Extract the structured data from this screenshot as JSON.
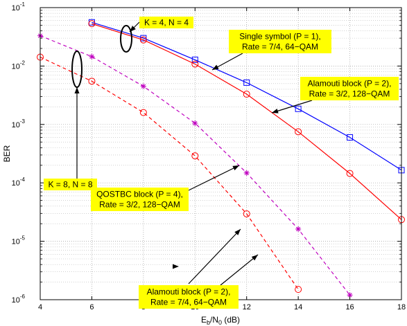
{
  "chart_data": {
    "type": "line",
    "y_scale": "log",
    "grid": true,
    "xlabel": {
      "main": "E",
      "sub": "b",
      "mid": "/N",
      "sub2": "0",
      "tail": " (dB)"
    },
    "ylabel": "BER",
    "xlim": [
      4,
      18
    ],
    "ylim": [
      1e-06,
      0.1
    ],
    "xticks": [
      "4",
      "6",
      "8",
      "10",
      "12",
      "14",
      "16",
      "18"
    ],
    "yticks": [
      {
        "base": "10",
        "exp": "-1"
      },
      {
        "base": "10",
        "exp": "-2"
      },
      {
        "base": "10",
        "exp": "-3"
      },
      {
        "base": "10",
        "exp": "-4"
      },
      {
        "base": "10",
        "exp": "-5"
      },
      {
        "base": "10",
        "exp": "-6"
      }
    ],
    "series": [
      {
        "key": "blue-solid-square",
        "color": "#0000ff",
        "dash": "solid",
        "marker": "square",
        "x": [
          6,
          8,
          10,
          12,
          14,
          16,
          18
        ],
        "y": [
          0.056,
          0.03,
          0.0128,
          0.0052,
          0.00185,
          0.0006,
          0.000165
        ]
      },
      {
        "key": "red-solid-circle",
        "color": "#ff0000",
        "dash": "solid",
        "marker": "circle",
        "x": [
          6,
          8,
          10,
          12,
          14,
          16,
          18
        ],
        "y": [
          0.053,
          0.028,
          0.0108,
          0.0033,
          0.00075,
          0.000145,
          2.35e-05
        ]
      },
      {
        "key": "magenta-dashed-star",
        "color": "#bf00bf",
        "dash": "dashed",
        "marker": "star",
        "x": [
          4,
          6,
          8,
          10,
          12,
          14,
          16
        ],
        "y": [
          0.033,
          0.0145,
          0.0045,
          0.00105,
          0.000148,
          1.62e-05,
          1.2e-06
        ]
      },
      {
        "key": "red-dashed-circle",
        "color": "#ff0000",
        "dash": "dashed",
        "marker": "circle",
        "x": [
          4,
          6,
          8,
          10,
          12,
          14
        ],
        "y": [
          0.0142,
          0.0055,
          0.0016,
          0.00029,
          2.95e-05,
          1.5e-06
        ]
      }
    ],
    "annotations": [
      {
        "key": "k4n4",
        "lines": [
          "K = 4, N = 4"
        ]
      },
      {
        "key": "k8n8",
        "lines": [
          "K = 8, N = 8"
        ]
      },
      {
        "key": "single",
        "lines": [
          "Single symbol (P = 1),",
          "Rate = 7/4, 64−QAM"
        ]
      },
      {
        "key": "alamouti128",
        "lines": [
          "Alamouti block (P = 2),",
          "Rate = 3/2, 128−QAM"
        ]
      },
      {
        "key": "qostbc",
        "lines": [
          "QOSTBC block (P = 4),",
          "Rate = 3/2, 128−QAM"
        ]
      },
      {
        "key": "alamouti64",
        "lines": [
          "Alamouti block (P = 2),",
          "Rate = 7/4, 64−QAM"
        ]
      }
    ],
    "annotation_color": "#ffff00"
  }
}
